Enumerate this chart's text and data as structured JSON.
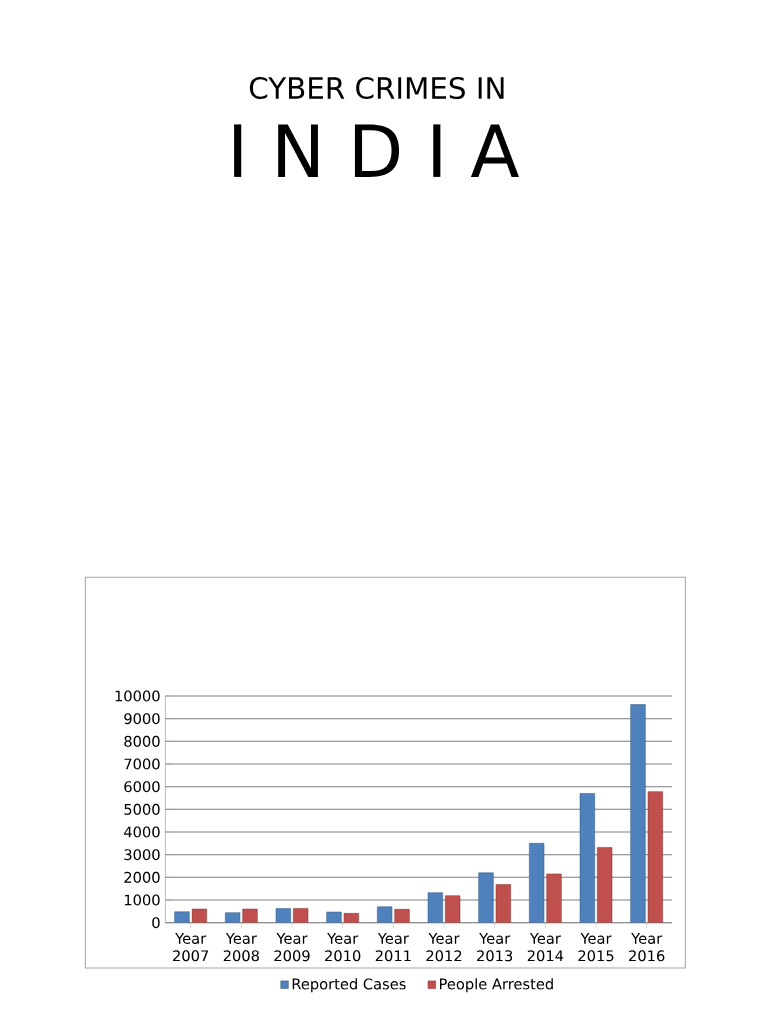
{
  "chart_data": {
    "type": "bar",
    "title": "CYBER CRIMES IN",
    "subtitle": "I N D I A",
    "categories": [
      "Year 2007",
      "Year 2008",
      "Year 2009",
      "Year 2010",
      "Year 2011",
      "Year 2012",
      "Year 2013",
      "Year 2014",
      "Year 2015",
      "Year 2016"
    ],
    "series": [
      {
        "name": "Reported Cases",
        "color": "#4f81bd",
        "values": [
          480,
          440,
          620,
          470,
          700,
          1320,
          2200,
          3500,
          5700,
          9620
        ]
      },
      {
        "name": "People Arrested",
        "color": "#c0504d",
        "values": [
          600,
          600,
          630,
          410,
          590,
          1190,
          1680,
          2150,
          3320,
          5780
        ]
      }
    ],
    "ylim": [
      0,
      10000
    ],
    "yticks": [
      0,
      1000,
      2000,
      3000,
      4000,
      5000,
      6000,
      7000,
      8000,
      9000,
      10000
    ],
    "grid": "y",
    "legend": "bottom"
  }
}
